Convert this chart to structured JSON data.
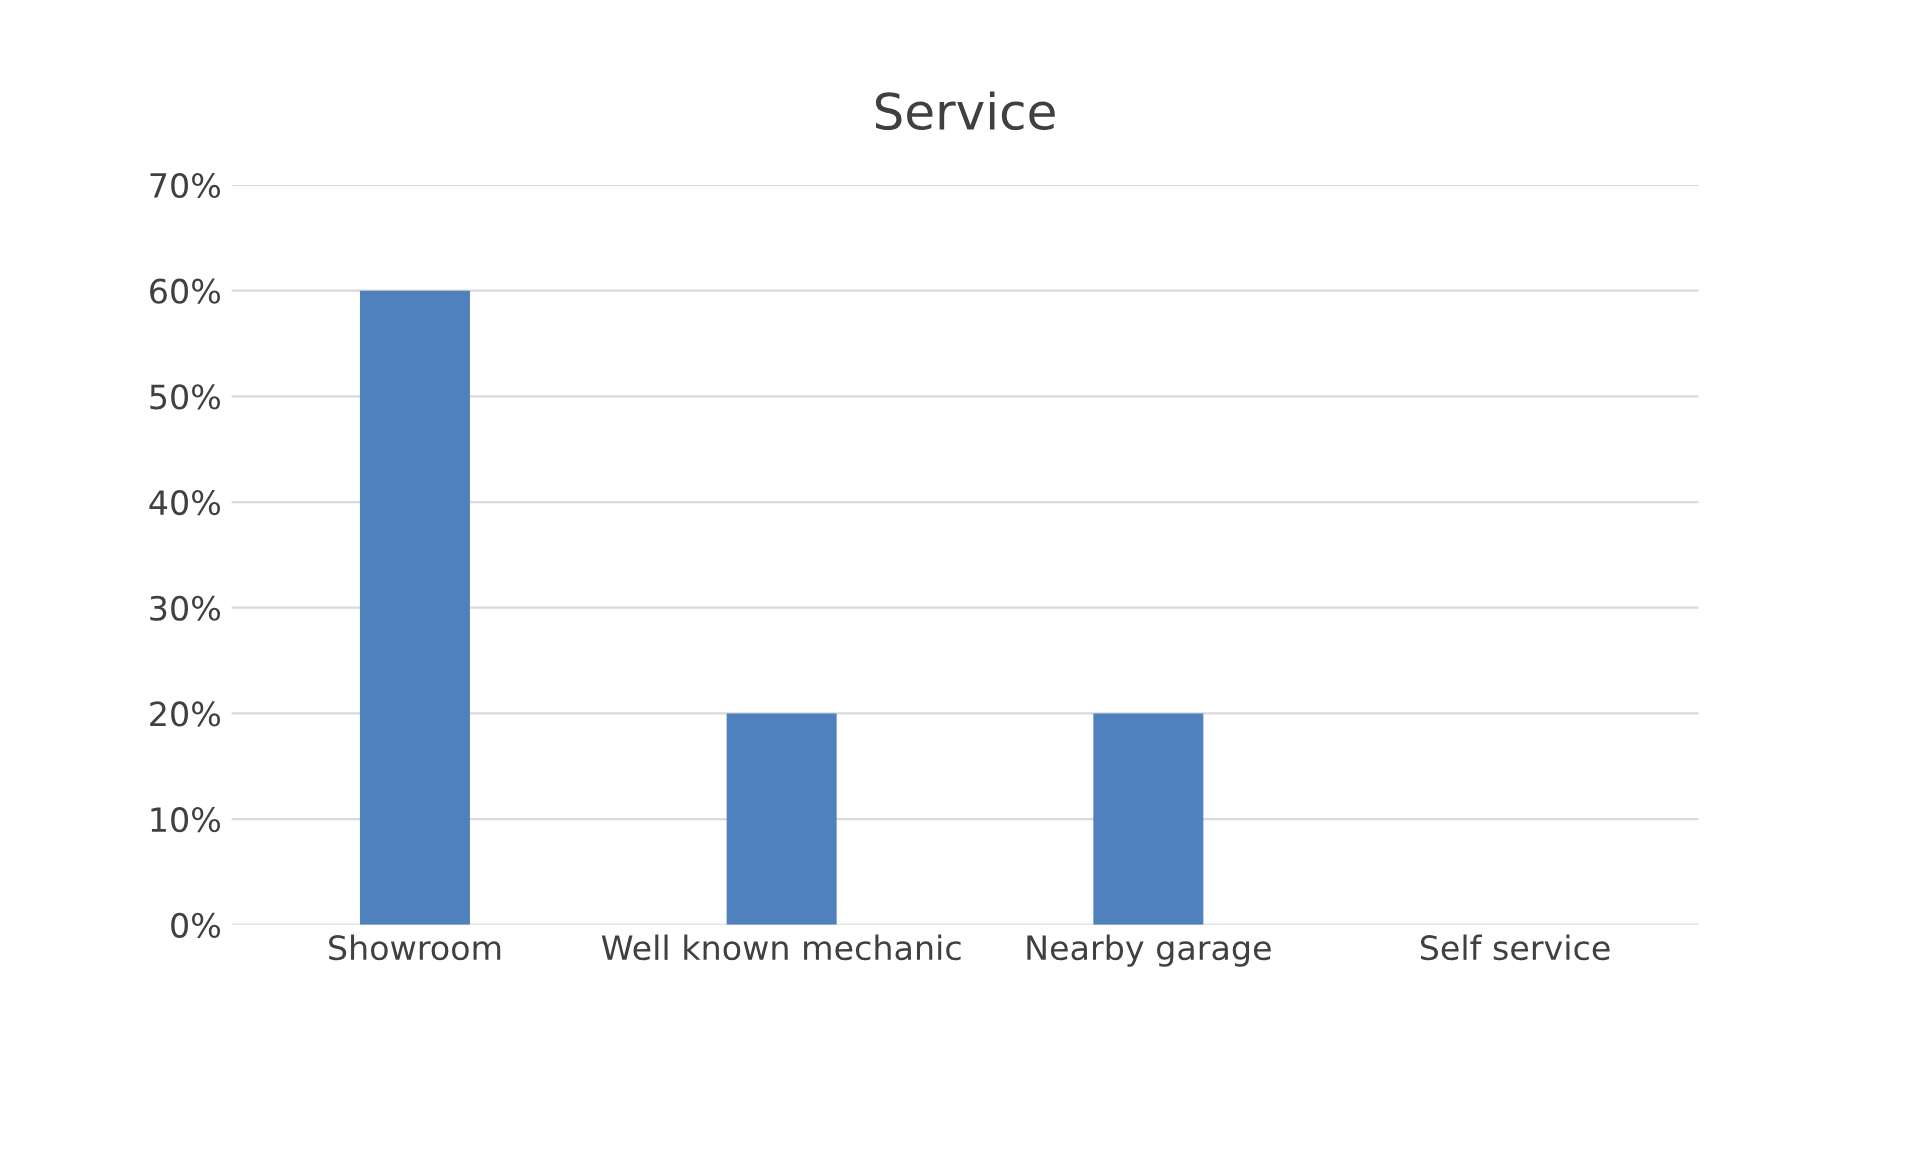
{
  "chart_data": {
    "type": "bar",
    "title": "Service",
    "categories": [
      "Showroom",
      "Well known mechanic",
      "Nearby garage",
      "Self service"
    ],
    "values": [
      60,
      20,
      20,
      0
    ],
    "color": "#4f81bd",
    "ylim": [
      0,
      70
    ],
    "yticks": [
      {
        "value": 0,
        "label": "0%"
      },
      {
        "value": 10,
        "label": "10%"
      },
      {
        "value": 20,
        "label": "20%"
      },
      {
        "value": 30,
        "label": "30%"
      },
      {
        "value": 40,
        "label": "40%"
      },
      {
        "value": 50,
        "label": "50%"
      },
      {
        "value": 60,
        "label": "60%"
      },
      {
        "value": 70,
        "label": "70%"
      }
    ],
    "grid": "y",
    "legend": false
  }
}
